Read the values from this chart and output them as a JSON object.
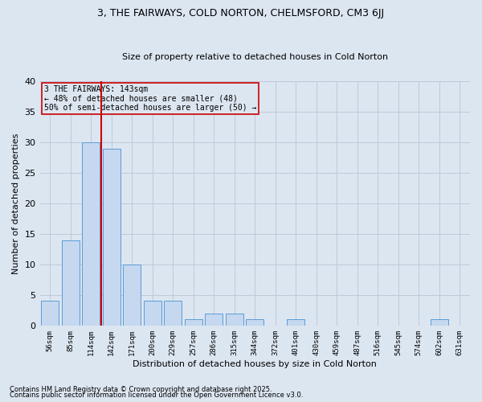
{
  "title": "3, THE FAIRWAYS, COLD NORTON, CHELMSFORD, CM3 6JJ",
  "subtitle": "Size of property relative to detached houses in Cold Norton",
  "xlabel": "Distribution of detached houses by size in Cold Norton",
  "ylabel": "Number of detached properties",
  "categories": [
    "56sqm",
    "85sqm",
    "114sqm",
    "142sqm",
    "171sqm",
    "200sqm",
    "229sqm",
    "257sqm",
    "286sqm",
    "315sqm",
    "344sqm",
    "372sqm",
    "401sqm",
    "430sqm",
    "459sqm",
    "487sqm",
    "516sqm",
    "545sqm",
    "574sqm",
    "602sqm",
    "631sqm"
  ],
  "values": [
    4,
    14,
    30,
    29,
    10,
    4,
    4,
    1,
    2,
    2,
    1,
    0,
    1,
    0,
    0,
    0,
    0,
    0,
    0,
    1,
    0
  ],
  "bar_color": "#c5d8f0",
  "bar_edge_color": "#5b9bd5",
  "grid_color": "#c0c8d8",
  "background_color": "#dce6f1",
  "annotation_box_color": "#cc0000",
  "vline_color": "#cc0000",
  "vline_x_index": 3,
  "annotation_title": "3 THE FAIRWAYS: 143sqm",
  "annotation_line2": "← 48% of detached houses are smaller (48)",
  "annotation_line3": "50% of semi-detached houses are larger (50) →",
  "ylim": [
    0,
    40
  ],
  "yticks": [
    0,
    5,
    10,
    15,
    20,
    25,
    30,
    35,
    40
  ],
  "title_fontsize": 9,
  "subtitle_fontsize": 8,
  "ylabel_fontsize": 8,
  "xlabel_fontsize": 8,
  "footer1": "Contains HM Land Registry data © Crown copyright and database right 2025.",
  "footer2": "Contains public sector information licensed under the Open Government Licence v3.0."
}
